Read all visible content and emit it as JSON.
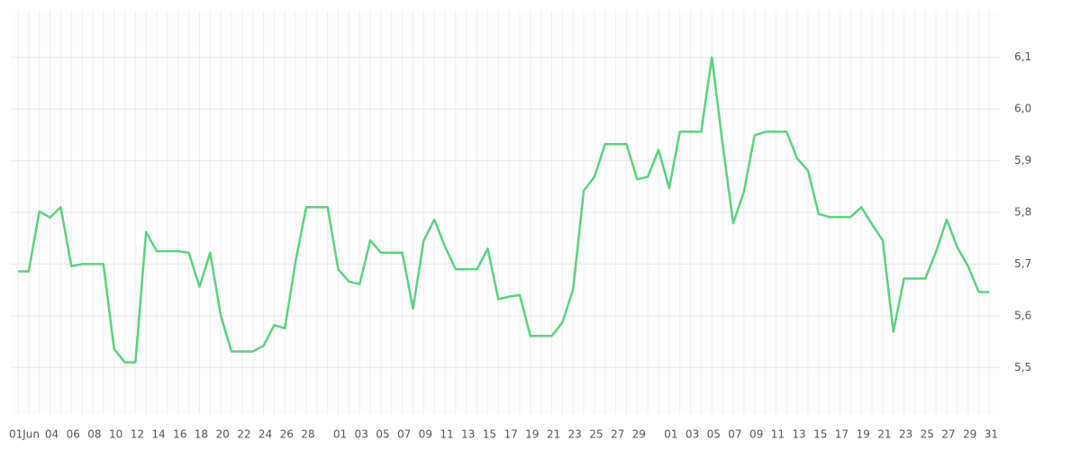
{
  "chart_data": {
    "type": "line",
    "categories": [
      "01Jun",
      null,
      null,
      "04",
      null,
      "06",
      null,
      "08",
      null,
      "10",
      null,
      "12",
      null,
      "14",
      null,
      "16",
      null,
      "18",
      null,
      "20",
      null,
      "22",
      null,
      "24",
      null,
      "26",
      null,
      "28",
      null,
      null,
      "01",
      null,
      "03",
      null,
      "05",
      null,
      "07",
      null,
      "09",
      null,
      "11",
      null,
      "13",
      null,
      "15",
      null,
      "17",
      null,
      "19",
      null,
      "21",
      null,
      "23",
      null,
      "25",
      null,
      "27",
      null,
      "29",
      null,
      null,
      "01",
      null,
      "03",
      null,
      "05",
      null,
      "07",
      null,
      "09",
      null,
      "11",
      null,
      "13",
      null,
      "15",
      null,
      "17",
      null,
      "19",
      null,
      "21",
      null,
      "23",
      null,
      "25",
      null,
      "27",
      null,
      "29",
      null,
      "31"
    ],
    "values": [
      5.686,
      5.686,
      5.802,
      5.79,
      5.81,
      5.696,
      5.7,
      5.7,
      5.7,
      5.536,
      5.51,
      5.51,
      5.762,
      5.725,
      5.725,
      5.725,
      5.722,
      5.656,
      5.722,
      5.6,
      5.531,
      5.531,
      5.531,
      5.542,
      5.582,
      5.576,
      5.705,
      5.81,
      5.81,
      5.81,
      5.69,
      5.666,
      5.661,
      5.746,
      5.722,
      5.722,
      5.722,
      5.614,
      5.745,
      5.786,
      5.734,
      5.69,
      5.69,
      5.69,
      5.73,
      5.632,
      5.637,
      5.64,
      5.561,
      5.561,
      5.561,
      5.587,
      5.651,
      5.842,
      5.869,
      5.932,
      5.932,
      5.932,
      5.864,
      5.869,
      5.921,
      5.847,
      5.956,
      5.956,
      5.956,
      6.1,
      5.933,
      5.779,
      5.84,
      5.949,
      5.956,
      5.956,
      5.956,
      5.904,
      5.881,
      5.797,
      5.791,
      5.791,
      5.791,
      5.81,
      5.777,
      5.746,
      5.569,
      5.672,
      5.672,
      5.672,
      5.724,
      5.786,
      5.732,
      5.696,
      5.646,
      5.646
    ],
    "color": "#5ad27f",
    "ylim": [
      5.41,
      6.19
    ],
    "yticks": [
      {
        "value": 5.5,
        "label": "5,5"
      },
      {
        "value": 5.6,
        "label": "5,6"
      },
      {
        "value": 5.7,
        "label": "5,7"
      },
      {
        "value": 5.8,
        "label": "5,8"
      },
      {
        "value": 5.9,
        "label": "5,9"
      },
      {
        "value": 6.0,
        "label": "6,0"
      },
      {
        "value": 6.1,
        "label": "6,1"
      }
    ],
    "grid": true
  }
}
